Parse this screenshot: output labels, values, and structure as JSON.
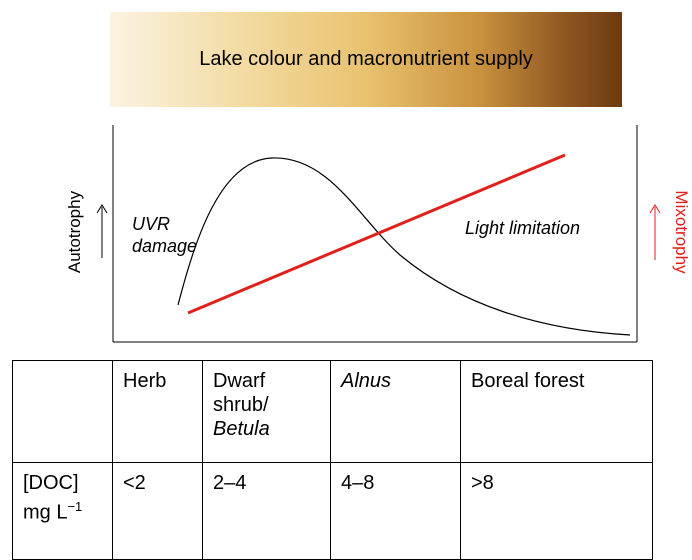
{
  "header": {
    "title": "Lake colour and macronutrient supply"
  },
  "plot": {
    "left_axis_label": "Autotrophy",
    "right_axis_label": "Mixotrophy",
    "annotation_left": [
      "UVR",
      "damage"
    ],
    "annotation_right": "Light limitation"
  },
  "table": {
    "headers": [
      "",
      "Herb",
      [
        "Dwarf",
        "shrub/",
        "Betula"
      ],
      "Alnus",
      "Boreal forest"
    ],
    "rows": [
      [
        {
          "text": "[DOC] mg L",
          "sup": "−1"
        },
        "<2",
        "2–4",
        "4–8",
        ">8"
      ]
    ]
  }
}
